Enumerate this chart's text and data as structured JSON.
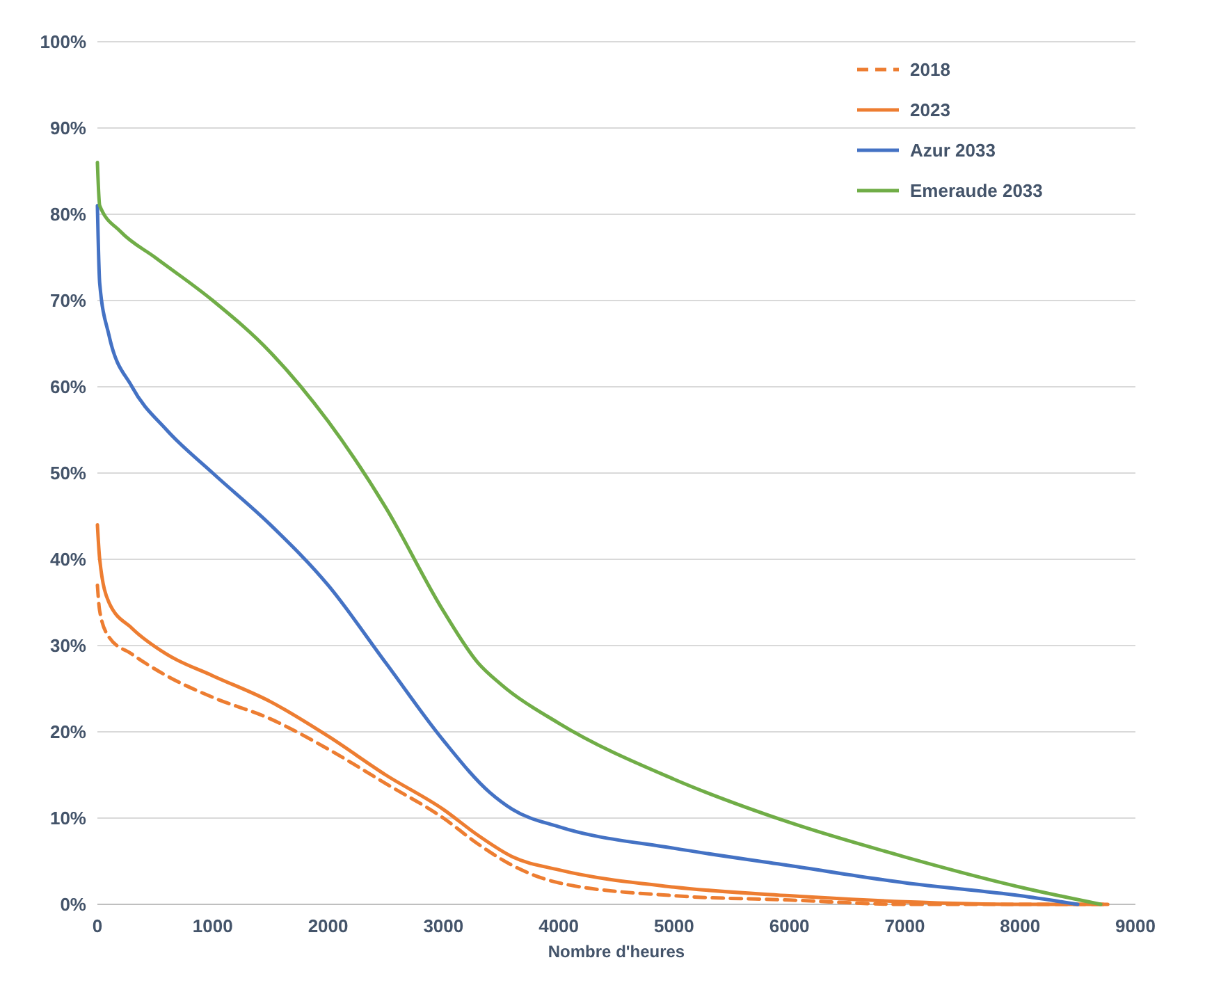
{
  "chart_data": {
    "type": "line",
    "xlabel": "Nombre d'heures",
    "xlim": [
      0,
      9000
    ],
    "xticks": [
      0,
      1000,
      2000,
      3000,
      4000,
      5000,
      6000,
      7000,
      8000,
      9000
    ],
    "ylim": [
      0,
      100
    ],
    "yticks": [
      {
        "value": 0,
        "label": "0%"
      },
      {
        "value": 10,
        "label": "10%"
      },
      {
        "value": 20,
        "label": "20%"
      },
      {
        "value": 30,
        "label": "30%"
      },
      {
        "value": 40,
        "label": "40%"
      },
      {
        "value": 50,
        "label": "50%"
      },
      {
        "value": 60,
        "label": "60%"
      },
      {
        "value": 70,
        "label": "70%"
      },
      {
        "value": 80,
        "label": "80%"
      },
      {
        "value": 90,
        "label": "90%"
      },
      {
        "value": 100,
        "label": "100%"
      }
    ],
    "grid": "y",
    "legend": "top right",
    "marker": "none",
    "series": [
      {
        "name": "2018",
        "color": "#ed7d31",
        "line_style": "dashed",
        "x": [
          0,
          20,
          100,
          300,
          600,
          1000,
          1500,
          2000,
          2500,
          3000,
          3300,
          3600,
          4000,
          5000,
          6000,
          7000,
          8760
        ],
        "values": [
          37,
          34,
          31,
          29,
          26.5,
          24,
          21.5,
          18,
          14,
          10,
          7,
          4.5,
          2.5,
          1,
          0.5,
          0,
          0
        ]
      },
      {
        "name": "2023",
        "color": "#ed7d31",
        "line_style": "solid",
        "x": [
          0,
          20,
          100,
          300,
          600,
          1000,
          1500,
          2000,
          2500,
          3000,
          3300,
          3600,
          4000,
          5000,
          6000,
          7000,
          8000,
          8760
        ],
        "values": [
          44,
          40,
          35,
          32,
          29,
          26.5,
          23.5,
          19.5,
          15,
          11,
          8,
          5.5,
          4,
          2,
          1,
          0.3,
          0,
          0
        ]
      },
      {
        "name": "Azur 2033",
        "color": "#4472c4",
        "line_style": "solid",
        "x": [
          0,
          20,
          100,
          300,
          600,
          1000,
          1500,
          2000,
          2500,
          3000,
          3400,
          3600,
          4000,
          5000,
          6000,
          7000,
          8000,
          8500
        ],
        "values": [
          81,
          72,
          66,
          60,
          55,
          50,
          44,
          37,
          28,
          19,
          13,
          11,
          9,
          6.5,
          4.5,
          2.5,
          1,
          0
        ]
      },
      {
        "name": "Emeraude 2033",
        "color": "#70ad47",
        "line_style": "solid",
        "x": [
          0,
          20,
          200,
          500,
          1000,
          1500,
          2000,
          2500,
          3000,
          3300,
          3500,
          4000,
          5000,
          6000,
          7000,
          8000,
          8700
        ],
        "values": [
          86,
          81,
          78,
          75,
          70,
          64,
          56,
          46,
          34,
          28,
          25.5,
          21,
          14.5,
          9.5,
          5.5,
          2,
          0
        ]
      }
    ]
  }
}
